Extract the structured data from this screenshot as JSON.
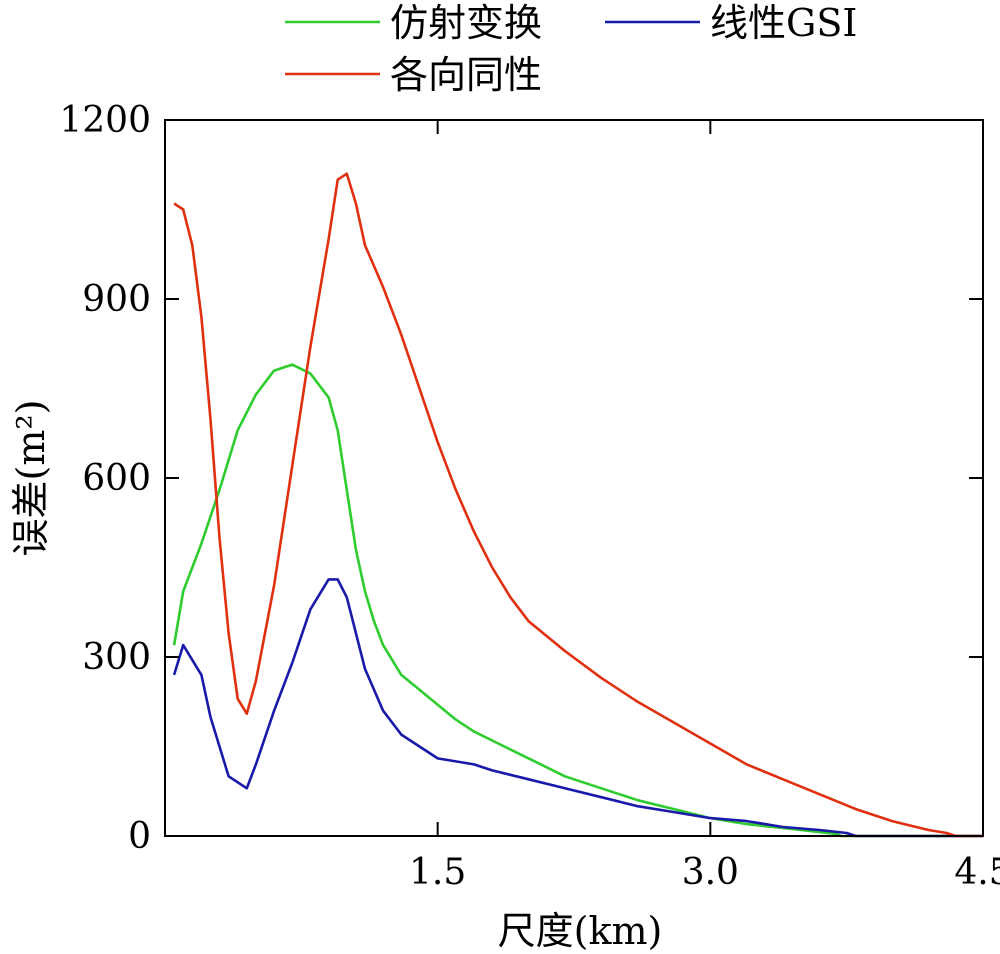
{
  "chart_data": {
    "type": "line",
    "xlabel": "尺度(km)",
    "ylabel": "误差(m²)",
    "xlim": [
      0,
      4.5
    ],
    "ylim": [
      0,
      1200
    ],
    "xticks": [
      1.5,
      3.0,
      4.5
    ],
    "xtick_labels": [
      "1.5",
      "3.0",
      "4.5"
    ],
    "yticks": [
      0,
      300,
      600,
      900,
      1200
    ],
    "ytick_labels": [
      "0",
      "300",
      "600",
      "900",
      "1200"
    ],
    "grid": false,
    "legend_position": "top",
    "series": [
      {
        "name": "仿射变换",
        "color": "#2ecc2e",
        "points": [
          [
            0.05,
            320
          ],
          [
            0.1,
            410
          ],
          [
            0.2,
            490
          ],
          [
            0.3,
            580
          ],
          [
            0.4,
            680
          ],
          [
            0.5,
            740
          ],
          [
            0.6,
            780
          ],
          [
            0.7,
            790
          ],
          [
            0.8,
            775
          ],
          [
            0.9,
            735
          ],
          [
            0.95,
            680
          ],
          [
            1.0,
            580
          ],
          [
            1.05,
            480
          ],
          [
            1.1,
            410
          ],
          [
            1.15,
            360
          ],
          [
            1.2,
            320
          ],
          [
            1.3,
            270
          ],
          [
            1.4,
            245
          ],
          [
            1.5,
            220
          ],
          [
            1.6,
            195
          ],
          [
            1.7,
            175
          ],
          [
            1.8,
            160
          ],
          [
            2.0,
            130
          ],
          [
            2.2,
            100
          ],
          [
            2.4,
            80
          ],
          [
            2.6,
            60
          ],
          [
            2.8,
            45
          ],
          [
            3.0,
            30
          ],
          [
            3.2,
            20
          ],
          [
            3.5,
            10
          ],
          [
            3.7,
            3
          ],
          [
            3.72,
            0
          ],
          [
            4.5,
            0
          ]
        ]
      },
      {
        "name": "线性GSI",
        "color": "#1a1aaa",
        "points": [
          [
            0.05,
            270
          ],
          [
            0.1,
            320
          ],
          [
            0.2,
            270
          ],
          [
            0.25,
            200
          ],
          [
            0.35,
            100
          ],
          [
            0.45,
            80
          ],
          [
            0.5,
            120
          ],
          [
            0.6,
            210
          ],
          [
            0.7,
            290
          ],
          [
            0.8,
            380
          ],
          [
            0.9,
            430
          ],
          [
            0.95,
            430
          ],
          [
            1.0,
            400
          ],
          [
            1.05,
            340
          ],
          [
            1.1,
            280
          ],
          [
            1.2,
            210
          ],
          [
            1.3,
            170
          ],
          [
            1.4,
            150
          ],
          [
            1.5,
            130
          ],
          [
            1.6,
            125
          ],
          [
            1.7,
            120
          ],
          [
            1.8,
            110
          ],
          [
            2.0,
            95
          ],
          [
            2.2,
            80
          ],
          [
            2.4,
            65
          ],
          [
            2.6,
            50
          ],
          [
            2.8,
            40
          ],
          [
            3.0,
            30
          ],
          [
            3.2,
            25
          ],
          [
            3.4,
            15
          ],
          [
            3.6,
            10
          ],
          [
            3.75,
            5
          ],
          [
            3.8,
            0
          ],
          [
            4.5,
            0
          ]
        ]
      },
      {
        "name": "各向同性",
        "color": "#e03010",
        "points": [
          [
            0.05,
            1060
          ],
          [
            0.1,
            1050
          ],
          [
            0.15,
            990
          ],
          [
            0.2,
            870
          ],
          [
            0.25,
            700
          ],
          [
            0.3,
            500
          ],
          [
            0.35,
            340
          ],
          [
            0.4,
            230
          ],
          [
            0.45,
            205
          ],
          [
            0.5,
            260
          ],
          [
            0.6,
            420
          ],
          [
            0.7,
            620
          ],
          [
            0.8,
            820
          ],
          [
            0.9,
            1000
          ],
          [
            0.95,
            1100
          ],
          [
            1.0,
            1110
          ],
          [
            1.05,
            1060
          ],
          [
            1.1,
            990
          ],
          [
            1.2,
            920
          ],
          [
            1.3,
            840
          ],
          [
            1.4,
            750
          ],
          [
            1.5,
            660
          ],
          [
            1.6,
            580
          ],
          [
            1.7,
            510
          ],
          [
            1.8,
            450
          ],
          [
            1.9,
            400
          ],
          [
            2.0,
            360
          ],
          [
            2.2,
            310
          ],
          [
            2.4,
            265
          ],
          [
            2.6,
            225
          ],
          [
            2.8,
            190
          ],
          [
            3.0,
            155
          ],
          [
            3.2,
            120
          ],
          [
            3.4,
            95
          ],
          [
            3.6,
            70
          ],
          [
            3.8,
            45
          ],
          [
            4.0,
            25
          ],
          [
            4.2,
            10
          ],
          [
            4.3,
            5
          ],
          [
            4.35,
            0
          ],
          [
            4.5,
            0
          ]
        ]
      }
    ]
  }
}
